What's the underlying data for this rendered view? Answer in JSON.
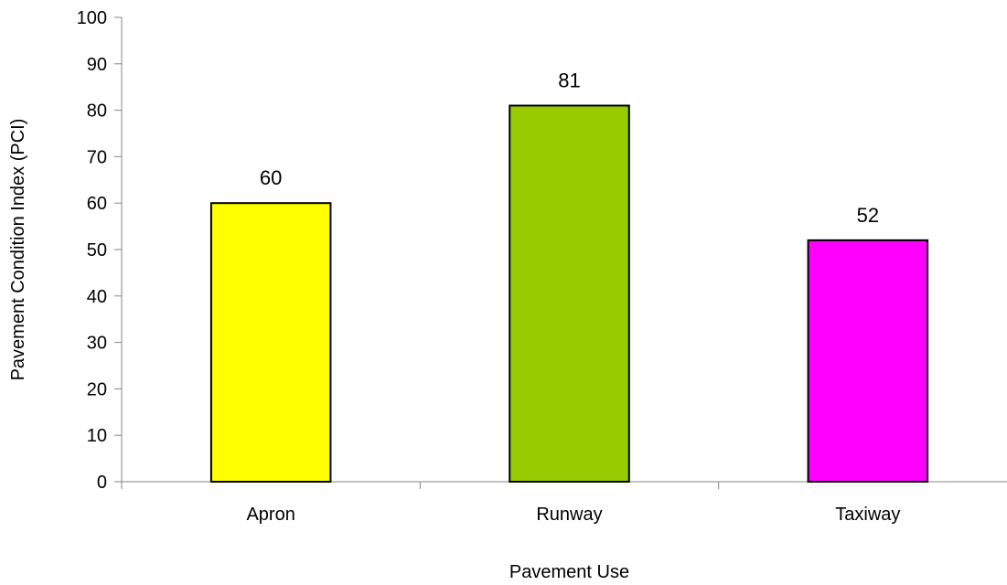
{
  "chart_data": {
    "type": "bar",
    "categories": [
      "Apron",
      "Runway",
      "Taxiway"
    ],
    "values": [
      60,
      81,
      52
    ],
    "data_labels": [
      "60",
      "81",
      "52"
    ],
    "bar_colors": [
      "#FFFF00",
      "#99CC00",
      "#FF00FF"
    ],
    "xlabel": "Pavement Use",
    "ylabel": "Pavement Condition Index (PCI)",
    "ylim": [
      0,
      100
    ],
    "yticks": [
      0,
      10,
      20,
      30,
      40,
      50,
      60,
      70,
      80,
      90,
      100
    ],
    "grid": false,
    "legend": "none"
  }
}
